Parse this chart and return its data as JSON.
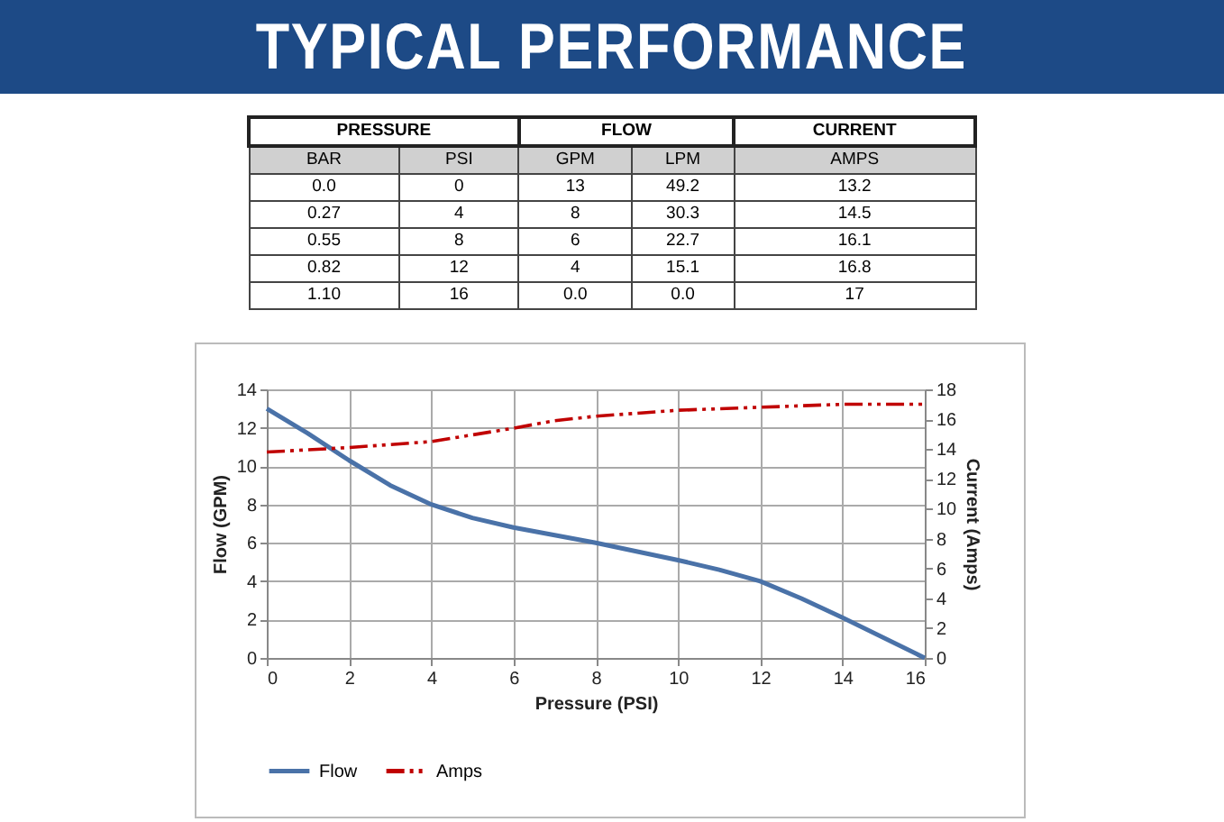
{
  "chart_data": [
    {
      "type": "other",
      "title": "TYPICAL PERFORMANCE",
      "annotations": [
        "PRESSURE",
        "FLOW",
        "CURRENT",
        "BAR",
        "PSI",
        "GPM",
        "LPM",
        "AMPS",
        "0.0",
        "0",
        "13",
        "49.2",
        "13.2",
        "0.27",
        "4",
        "8",
        "30.3",
        "14.5",
        "0.55",
        "8",
        "6",
        "22.7",
        "16.1",
        "0.82",
        "12",
        "4",
        "15.1",
        "16.8",
        "1.10",
        "16",
        "0.0",
        "0.0",
        "17"
      ]
    },
    {
      "type": "line",
      "xlabel": "Pressure (PSI)",
      "ylabel": "Flow (GPM)",
      "y2label": "Current (Amps)",
      "xlim": [
        0,
        16
      ],
      "xticks": [
        0,
        2,
        4,
        6,
        8,
        10,
        12,
        14,
        16
      ],
      "ylim": [
        0,
        14
      ],
      "yticks": [
        0,
        2,
        4,
        6,
        8,
        10,
        12,
        14
      ],
      "y2lim": [
        0,
        18
      ],
      "y2ticks": [
        0,
        2,
        4,
        6,
        8,
        10,
        12,
        14,
        16,
        18
      ],
      "grid": true,
      "legend": "bottom",
      "marker": "none",
      "series": [
        {
          "name": "Flow",
          "color": "#4a72a8",
          "x": [
            0,
            1,
            2,
            3,
            4,
            5,
            6,
            8,
            10,
            11,
            12,
            13,
            14,
            16
          ],
          "values": [
            13,
            11.7,
            10.3,
            9,
            8,
            7.3,
            6.8,
            6,
            5.1,
            4.6,
            4,
            3.1,
            2.1,
            0
          ]
        },
        {
          "name": "Amps",
          "color": "#c00000",
          "axis": "y2",
          "line_style": "dashed",
          "x": [
            0,
            2,
            4,
            6,
            7,
            8,
            10,
            12,
            14,
            16
          ],
          "values": [
            13.8,
            14.1,
            14.5,
            15.4,
            15.9,
            16.2,
            16.6,
            16.8,
            17,
            17
          ]
        }
      ]
    }
  ]
}
